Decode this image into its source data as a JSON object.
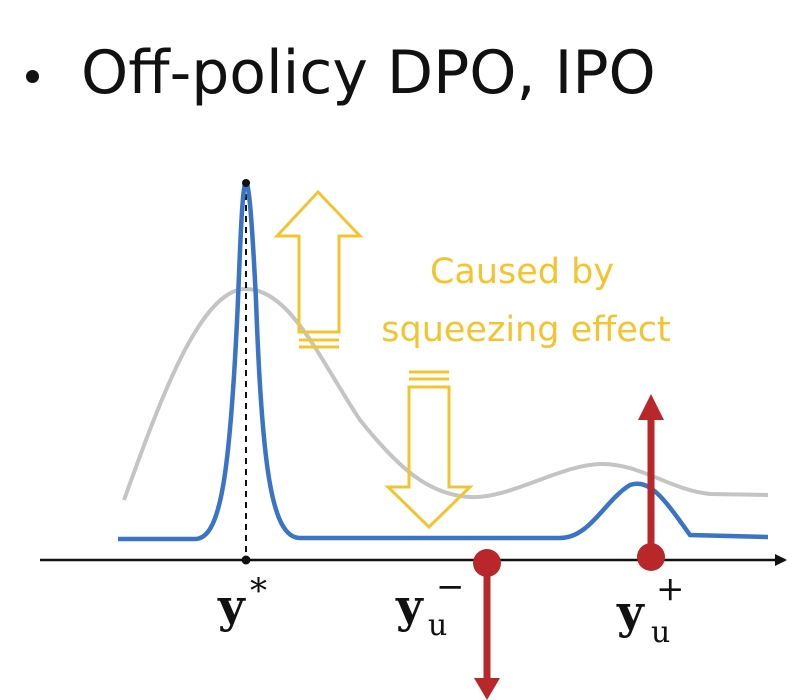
{
  "slide": {
    "bullet": "Off-policy DPO, IPO"
  },
  "annotation": {
    "line1": "Caused by",
    "line2": "squeezing effect"
  },
  "labels": {
    "y_star": {
      "main": "y",
      "sup": "*"
    },
    "y_minus": {
      "main": "y",
      "sub": "u",
      "sup": "−"
    },
    "y_plus": {
      "main": "y",
      "sub": "u",
      "sup": "+"
    }
  },
  "colors": {
    "blue_curve": "#3a74c4",
    "gray_curve": "#c4c4c4",
    "yellow_arrow": "#f4c430",
    "red_arrow": "#b8282b",
    "axis": "#111111"
  }
}
